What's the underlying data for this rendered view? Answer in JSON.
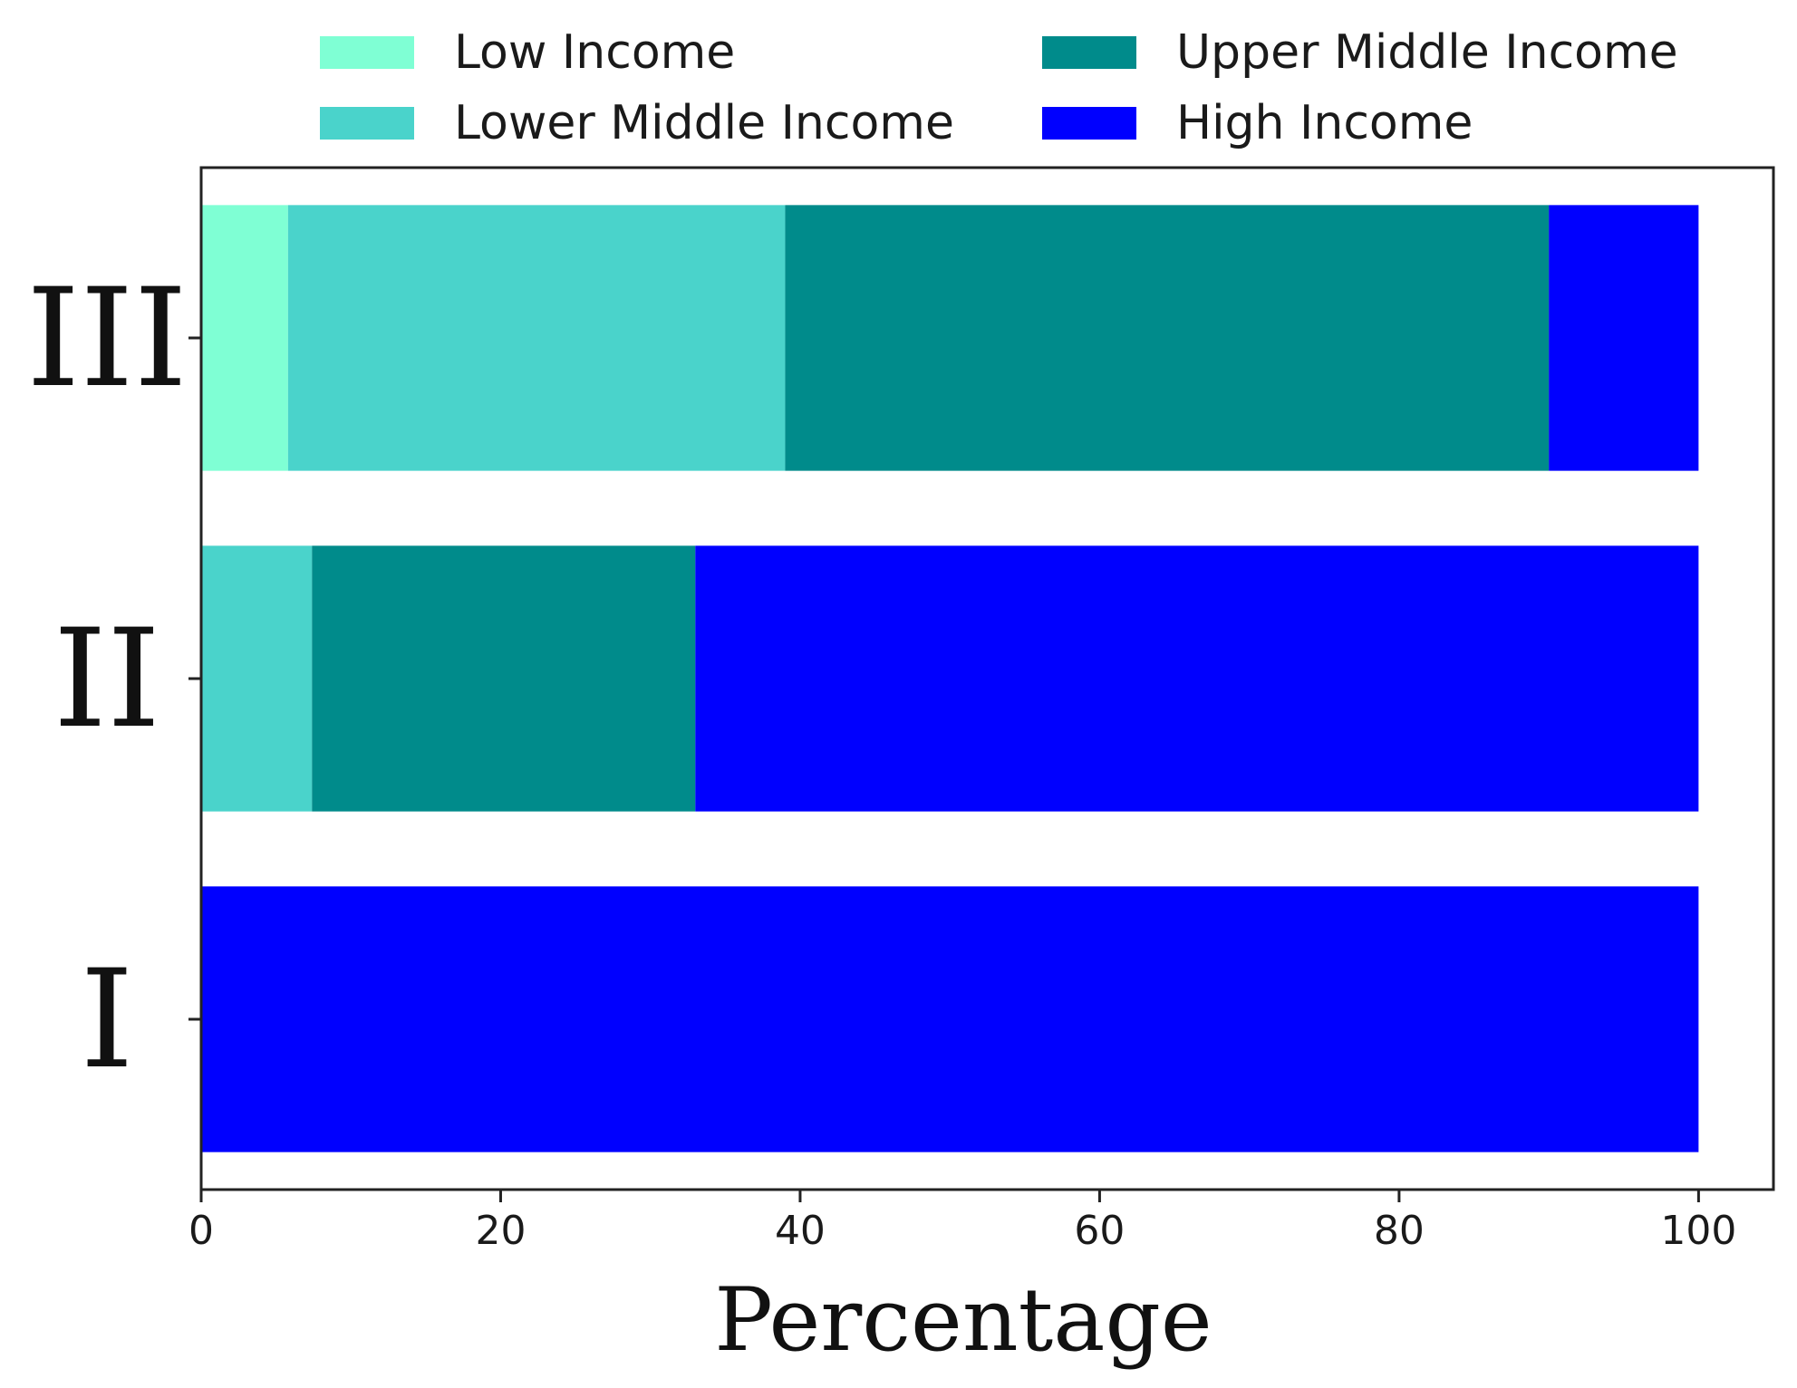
{
  "chart_data": {
    "type": "bar",
    "orientation": "horizontal",
    "stacked": true,
    "title": "",
    "xlabel": "Percentage",
    "ylabel": "",
    "xlim": [
      0,
      105
    ],
    "x_ticks": [
      "0",
      "20",
      "40",
      "60",
      "80",
      "100"
    ],
    "x_tick_values": [
      0,
      20,
      40,
      60,
      80,
      100
    ],
    "categories": [
      "I",
      "II",
      "III"
    ],
    "series": [
      {
        "name": "Low Income",
        "color": "#7fffd4",
        "values": [
          0,
          0,
          5.8
        ]
      },
      {
        "name": "Lower Middle Income",
        "color": "#4ad3cb",
        "values": [
          0,
          7.4,
          33.2
        ]
      },
      {
        "name": "Upper Middle Income",
        "color": "#008b8b",
        "values": [
          0,
          25.6,
          51.0
        ]
      },
      {
        "name": "High Income",
        "color": "#0000ff",
        "values": [
          100,
          67.0,
          10.0
        ]
      }
    ],
    "legend": {
      "placement": "top",
      "columns": 2
    },
    "grid": false
  }
}
